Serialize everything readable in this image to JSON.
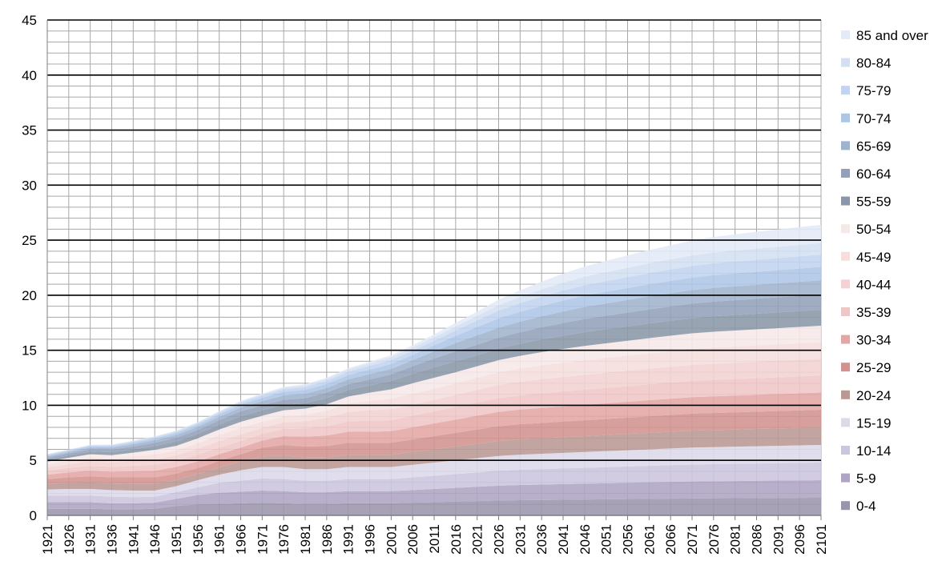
{
  "chart_data": {
    "type": "area",
    "stacked": true,
    "title": "",
    "xlabel": "",
    "ylabel": "",
    "ylim": [
      0,
      45
    ],
    "y_ticks": [
      0,
      5,
      10,
      15,
      20,
      25,
      30,
      35,
      40,
      45
    ],
    "x": [
      1921,
      1926,
      1931,
      1936,
      1941,
      1946,
      1951,
      1956,
      1961,
      1966,
      1971,
      1976,
      1981,
      1986,
      1991,
      1996,
      2001,
      2006,
      2011,
      2016,
      2021,
      2026,
      2031,
      2036,
      2041,
      2046,
      2051,
      2056,
      2061,
      2066,
      2071,
      2076,
      2081,
      2086,
      2091,
      2096,
      2101
    ],
    "grid": "major and minor",
    "legend_position": "right",
    "series": [
      {
        "name": "0-4",
        "color": "#9b95ab",
        "values": [
          0.6,
          0.6,
          0.6,
          0.55,
          0.55,
          0.6,
          0.85,
          1.0,
          1.05,
          1.1,
          1.15,
          1.1,
          1.05,
          1.05,
          1.1,
          1.1,
          1.1,
          1.15,
          1.2,
          1.25,
          1.3,
          1.35,
          1.38,
          1.4,
          1.42,
          1.44,
          1.46,
          1.48,
          1.5,
          1.52,
          1.54,
          1.55,
          1.56,
          1.57,
          1.58,
          1.59,
          1.6
        ]
      },
      {
        "name": "5-9",
        "color": "#aea4c4",
        "values": [
          0.6,
          0.6,
          0.6,
          0.55,
          0.55,
          0.55,
          0.65,
          0.85,
          1.0,
          1.05,
          1.1,
          1.1,
          1.05,
          1.05,
          1.1,
          1.1,
          1.1,
          1.15,
          1.2,
          1.25,
          1.3,
          1.35,
          1.38,
          1.4,
          1.42,
          1.44,
          1.46,
          1.48,
          1.5,
          1.52,
          1.54,
          1.55,
          1.56,
          1.57,
          1.58,
          1.59,
          1.6
        ]
      },
      {
        "name": "10-14",
        "color": "#cbc5de",
        "values": [
          0.6,
          0.6,
          0.6,
          0.6,
          0.55,
          0.55,
          0.6,
          0.7,
          0.9,
          1.0,
          1.1,
          1.1,
          1.05,
          1.05,
          1.1,
          1.1,
          1.1,
          1.15,
          1.2,
          1.25,
          1.3,
          1.35,
          1.38,
          1.4,
          1.42,
          1.44,
          1.46,
          1.48,
          1.5,
          1.52,
          1.54,
          1.55,
          1.56,
          1.57,
          1.58,
          1.59,
          1.6
        ]
      },
      {
        "name": "15-19",
        "color": "#dcdaea",
        "values": [
          0.55,
          0.6,
          0.6,
          0.6,
          0.6,
          0.55,
          0.55,
          0.65,
          0.75,
          0.95,
          1.05,
          1.1,
          1.05,
          1.05,
          1.1,
          1.1,
          1.1,
          1.15,
          1.2,
          1.25,
          1.3,
          1.35,
          1.38,
          1.4,
          1.42,
          1.44,
          1.46,
          1.48,
          1.5,
          1.52,
          1.54,
          1.55,
          1.56,
          1.57,
          1.58,
          1.59,
          1.6
        ]
      },
      {
        "name": "20-24",
        "color": "#b99993",
        "values": [
          0.5,
          0.55,
          0.6,
          0.6,
          0.6,
          0.6,
          0.55,
          0.55,
          0.65,
          0.8,
          0.95,
          1.05,
          1.05,
          1.05,
          1.1,
          1.1,
          1.1,
          1.15,
          1.2,
          1.25,
          1.3,
          1.35,
          1.38,
          1.4,
          1.42,
          1.44,
          1.46,
          1.48,
          1.5,
          1.52,
          1.54,
          1.55,
          1.56,
          1.57,
          1.58,
          1.59,
          1.6
        ]
      },
      {
        "name": "25-29",
        "color": "#d2938e",
        "values": [
          0.45,
          0.5,
          0.55,
          0.55,
          0.6,
          0.6,
          0.6,
          0.55,
          0.6,
          0.65,
          0.8,
          0.95,
          1.0,
          1.05,
          1.1,
          1.1,
          1.1,
          1.15,
          1.2,
          1.25,
          1.3,
          1.35,
          1.38,
          1.4,
          1.42,
          1.44,
          1.46,
          1.48,
          1.5,
          1.52,
          1.54,
          1.55,
          1.56,
          1.57,
          1.58,
          1.59,
          1.6
        ]
      },
      {
        "name": "30-34",
        "color": "#e2a6a3",
        "values": [
          0.4,
          0.45,
          0.5,
          0.5,
          0.55,
          0.6,
          0.6,
          0.6,
          0.6,
          0.6,
          0.65,
          0.8,
          0.9,
          0.95,
          1.0,
          1.0,
          1.05,
          1.1,
          1.15,
          1.2,
          1.25,
          1.3,
          1.33,
          1.36,
          1.38,
          1.4,
          1.42,
          1.44,
          1.46,
          1.48,
          1.5,
          1.51,
          1.52,
          1.53,
          1.54,
          1.55,
          1.56
        ]
      },
      {
        "name": "35-39",
        "color": "#efc6c6",
        "values": [
          0.35,
          0.4,
          0.45,
          0.45,
          0.5,
          0.55,
          0.55,
          0.6,
          0.6,
          0.6,
          0.6,
          0.65,
          0.75,
          0.85,
          0.95,
          1.0,
          1.0,
          1.05,
          1.1,
          1.15,
          1.2,
          1.25,
          1.28,
          1.32,
          1.35,
          1.38,
          1.4,
          1.42,
          1.44,
          1.46,
          1.48,
          1.49,
          1.5,
          1.51,
          1.52,
          1.53,
          1.54
        ]
      },
      {
        "name": "40-44",
        "color": "#f3d3d2",
        "values": [
          0.3,
          0.35,
          0.4,
          0.4,
          0.45,
          0.5,
          0.5,
          0.55,
          0.6,
          0.6,
          0.55,
          0.6,
          0.65,
          0.75,
          0.85,
          0.95,
          1.0,
          1.0,
          1.05,
          1.1,
          1.15,
          1.2,
          1.25,
          1.3,
          1.32,
          1.35,
          1.38,
          1.4,
          1.42,
          1.44,
          1.46,
          1.48,
          1.49,
          1.5,
          1.51,
          1.52,
          1.53
        ]
      },
      {
        "name": "45-49",
        "color": "#f5dedd",
        "values": [
          0.28,
          0.3,
          0.35,
          0.35,
          0.4,
          0.45,
          0.45,
          0.5,
          0.55,
          0.6,
          0.55,
          0.55,
          0.6,
          0.65,
          0.75,
          0.85,
          0.95,
          1.0,
          1.0,
          1.05,
          1.1,
          1.15,
          1.2,
          1.25,
          1.3,
          1.32,
          1.35,
          1.38,
          1.4,
          1.42,
          1.44,
          1.46,
          1.47,
          1.48,
          1.49,
          1.5,
          1.51
        ]
      },
      {
        "name": "50-54",
        "color": "#f7e8e8",
        "values": [
          0.25,
          0.28,
          0.3,
          0.32,
          0.35,
          0.4,
          0.42,
          0.45,
          0.5,
          0.55,
          0.55,
          0.55,
          0.55,
          0.6,
          0.65,
          0.75,
          0.85,
          0.95,
          1.0,
          1.0,
          1.05,
          1.1,
          1.15,
          1.2,
          1.25,
          1.3,
          1.32,
          1.35,
          1.38,
          1.4,
          1.42,
          1.44,
          1.45,
          1.46,
          1.47,
          1.48,
          1.49
        ]
      },
      {
        "name": "55-59",
        "color": "#8b97a9",
        "values": [
          0.2,
          0.22,
          0.25,
          0.28,
          0.3,
          0.35,
          0.4,
          0.4,
          0.45,
          0.5,
          0.5,
          0.5,
          0.5,
          0.55,
          0.6,
          0.65,
          0.75,
          0.85,
          0.95,
          1.0,
          1.0,
          1.05,
          1.1,
          1.15,
          1.2,
          1.25,
          1.28,
          1.3,
          1.33,
          1.36,
          1.38,
          1.4,
          1.41,
          1.42,
          1.43,
          1.44,
          1.45
        ]
      },
      {
        "name": "60-64",
        "color": "#92a0b9",
        "values": [
          0.15,
          0.18,
          0.2,
          0.22,
          0.25,
          0.3,
          0.33,
          0.35,
          0.4,
          0.45,
          0.45,
          0.45,
          0.45,
          0.5,
          0.5,
          0.55,
          0.6,
          0.7,
          0.8,
          0.9,
          0.95,
          1.0,
          1.05,
          1.1,
          1.15,
          1.2,
          1.22,
          1.25,
          1.28,
          1.3,
          1.32,
          1.34,
          1.35,
          1.36,
          1.37,
          1.38,
          1.39
        ]
      },
      {
        "name": "65-69",
        "color": "#9fb3cd",
        "values": [
          0.12,
          0.13,
          0.15,
          0.17,
          0.2,
          0.22,
          0.25,
          0.28,
          0.3,
          0.35,
          0.38,
          0.4,
          0.4,
          0.42,
          0.45,
          0.48,
          0.5,
          0.55,
          0.65,
          0.75,
          0.85,
          0.9,
          0.95,
          1.0,
          1.05,
          1.1,
          1.12,
          1.15,
          1.18,
          1.2,
          1.22,
          1.24,
          1.25,
          1.26,
          1.27,
          1.28,
          1.29
        ]
      },
      {
        "name": "70-74",
        "color": "#aec6e6",
        "values": [
          0.1,
          0.1,
          0.12,
          0.13,
          0.15,
          0.17,
          0.18,
          0.2,
          0.23,
          0.27,
          0.3,
          0.33,
          0.35,
          0.37,
          0.4,
          0.42,
          0.45,
          0.48,
          0.55,
          0.65,
          0.75,
          0.85,
          0.9,
          0.95,
          1.0,
          1.03,
          1.06,
          1.08,
          1.1,
          1.12,
          1.14,
          1.16,
          1.17,
          1.18,
          1.19,
          1.2,
          1.21
        ]
      },
      {
        "name": "75-79",
        "color": "#c2d4ef",
        "values": [
          0.07,
          0.07,
          0.08,
          0.09,
          0.1,
          0.11,
          0.12,
          0.13,
          0.15,
          0.18,
          0.2,
          0.23,
          0.25,
          0.28,
          0.3,
          0.33,
          0.36,
          0.38,
          0.42,
          0.5,
          0.6,
          0.7,
          0.78,
          0.85,
          0.9,
          0.93,
          0.96,
          0.99,
          1.01,
          1.03,
          1.05,
          1.07,
          1.08,
          1.09,
          1.1,
          1.11,
          1.12
        ]
      },
      {
        "name": "80-84",
        "color": "#d3e0f3",
        "values": [
          0.04,
          0.04,
          0.05,
          0.05,
          0.06,
          0.06,
          0.07,
          0.08,
          0.09,
          0.1,
          0.12,
          0.14,
          0.16,
          0.18,
          0.2,
          0.23,
          0.26,
          0.28,
          0.31,
          0.35,
          0.42,
          0.5,
          0.58,
          0.65,
          0.72,
          0.78,
          0.82,
          0.86,
          0.9,
          0.93,
          0.96,
          0.98,
          1.0,
          1.02,
          1.03,
          1.04,
          1.05
        ]
      },
      {
        "name": "85 and over",
        "color": "#e3ebf7",
        "values": [
          0.02,
          0.02,
          0.02,
          0.03,
          0.03,
          0.03,
          0.04,
          0.04,
          0.05,
          0.06,
          0.07,
          0.08,
          0.1,
          0.11,
          0.12,
          0.15,
          0.18,
          0.22,
          0.27,
          0.33,
          0.4,
          0.5,
          0.6,
          0.7,
          0.82,
          0.93,
          1.03,
          1.12,
          1.2,
          1.28,
          1.35,
          1.42,
          1.48,
          1.54,
          1.58,
          1.62,
          1.66
        ]
      }
    ]
  }
}
